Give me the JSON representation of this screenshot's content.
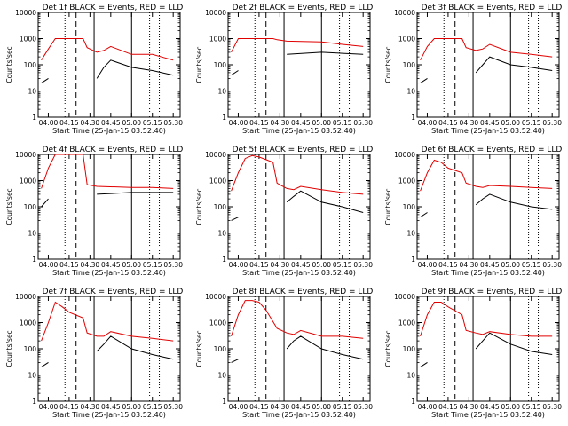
{
  "y_axis_label": "Counts/sec",
  "x_axis_label": "Start Time (25-Jan-15 03:52:40)",
  "y_ticks": [
    "1",
    "10",
    "100",
    "1000",
    "10000"
  ],
  "x_ticks": [
    "04:00",
    "04:15",
    "04:30",
    "04:45",
    "05:00",
    "05:15",
    "05:30"
  ],
  "colors": {
    "events": "#000000",
    "lld": "#e00000",
    "background": "#ffffff"
  },
  "chart_data": [
    {
      "type": "line",
      "title": "Det 1f BLACK = Events, RED = LLD",
      "ylim": [
        1,
        10000
      ],
      "yscale": "log",
      "series": [
        {
          "name": "Events",
          "x": [
            "03:55",
            "04:00",
            "04:12",
            "04:25",
            "04:30",
            "04:35",
            "04:40",
            "04:45",
            "05:00",
            "05:15",
            "05:30"
          ],
          "values": [
            20,
            30,
            null,
            null,
            null,
            30,
            80,
            150,
            80,
            60,
            40
          ]
        },
        {
          "name": "LLD",
          "x": [
            "03:55",
            "04:00",
            "04:05",
            "04:25",
            "04:28",
            "04:35",
            "04:40",
            "04:45",
            "05:00",
            "05:15",
            "05:30"
          ],
          "values": [
            150,
            400,
            1000,
            1000,
            450,
            300,
            350,
            500,
            250,
            250,
            150
          ]
        }
      ]
    },
    {
      "type": "line",
      "title": "Det 2f BLACK = Events, RED = LLD",
      "ylim": [
        1,
        10000
      ],
      "yscale": "log",
      "series": [
        {
          "name": "Events",
          "x": [
            "03:55",
            "04:00",
            "04:25",
            "04:30",
            "04:35",
            "05:00",
            "05:30"
          ],
          "values": [
            40,
            60,
            null,
            null,
            250,
            300,
            250
          ]
        },
        {
          "name": "LLD",
          "x": [
            "03:55",
            "04:00",
            "04:05",
            "04:25",
            "04:28",
            "04:35",
            "05:00",
            "05:15",
            "05:30"
          ],
          "values": [
            300,
            1000,
            1000,
            1000,
            900,
            800,
            750,
            600,
            500
          ]
        }
      ]
    },
    {
      "type": "line",
      "title": "Det 3f BLACK = Events, RED = LLD",
      "ylim": [
        1,
        10000
      ],
      "yscale": "log",
      "series": [
        {
          "name": "Events",
          "x": [
            "03:55",
            "04:00",
            "04:25",
            "04:30",
            "04:35",
            "04:40",
            "04:45",
            "05:00",
            "05:15",
            "05:30"
          ],
          "values": [
            20,
            30,
            null,
            null,
            50,
            100,
            200,
            100,
            80,
            60
          ]
        },
        {
          "name": "LLD",
          "x": [
            "03:55",
            "04:00",
            "04:05",
            "04:25",
            "04:28",
            "04:35",
            "04:40",
            "04:45",
            "05:00",
            "05:15",
            "05:30"
          ],
          "values": [
            150,
            500,
            1000,
            1000,
            450,
            350,
            400,
            600,
            300,
            250,
            200
          ]
        }
      ]
    },
    {
      "type": "line",
      "title": "Det 4f BLACK = Events, RED = LLD",
      "ylim": [
        1,
        10000
      ],
      "yscale": "log",
      "series": [
        {
          "name": "Events",
          "x": [
            "03:55",
            "04:00",
            "04:25",
            "04:30",
            "04:35",
            "05:00",
            "05:30"
          ],
          "values": [
            100,
            200,
            null,
            null,
            300,
            350,
            350
          ]
        },
        {
          "name": "LLD",
          "x": [
            "03:55",
            "04:00",
            "04:05",
            "04:10",
            "04:25",
            "04:28",
            "04:35",
            "05:00",
            "05:15",
            "05:30"
          ],
          "values": [
            500,
            3000,
            10000,
            10000,
            10000,
            700,
            600,
            550,
            550,
            500
          ]
        }
      ]
    },
    {
      "type": "line",
      "title": "Det 5f BLACK = Events, RED = LLD",
      "ylim": [
        1,
        10000
      ],
      "yscale": "log",
      "series": [
        {
          "name": "Events",
          "x": [
            "03:55",
            "04:00",
            "04:25",
            "04:30",
            "04:35",
            "04:40",
            "04:45",
            "05:00",
            "05:15",
            "05:30"
          ],
          "values": [
            30,
            40,
            null,
            null,
            150,
            250,
            400,
            150,
            100,
            60
          ]
        },
        {
          "name": "LLD",
          "x": [
            "03:55",
            "04:00",
            "04:05",
            "04:10",
            "04:15",
            "04:25",
            "04:28",
            "04:35",
            "04:40",
            "04:45",
            "05:00",
            "05:15",
            "05:30"
          ],
          "values": [
            400,
            2000,
            7000,
            9000,
            8000,
            5000,
            800,
            500,
            450,
            600,
            450,
            350,
            300
          ]
        }
      ]
    },
    {
      "type": "line",
      "title": "Det 6f BLACK = Events, RED = LLD",
      "ylim": [
        1,
        10000
      ],
      "yscale": "log",
      "series": [
        {
          "name": "Events",
          "x": [
            "03:55",
            "04:00",
            "04:25",
            "04:30",
            "04:35",
            "04:40",
            "04:45",
            "05:00",
            "05:15",
            "05:30"
          ],
          "values": [
            40,
            60,
            null,
            null,
            120,
            200,
            300,
            150,
            100,
            80
          ]
        },
        {
          "name": "LLD",
          "x": [
            "03:55",
            "04:00",
            "04:05",
            "04:10",
            "04:15",
            "04:25",
            "04:28",
            "04:35",
            "04:40",
            "04:45",
            "05:00",
            "05:15",
            "05:30"
          ],
          "values": [
            400,
            2000,
            6000,
            5000,
            3000,
            2000,
            800,
            600,
            550,
            650,
            600,
            550,
            500
          ]
        }
      ]
    },
    {
      "type": "line",
      "title": "Det 7f BLACK = Events, RED = LLD",
      "ylim": [
        1,
        10000
      ],
      "yscale": "log",
      "series": [
        {
          "name": "Events",
          "x": [
            "03:55",
            "04:00",
            "04:25",
            "04:30",
            "04:35",
            "04:40",
            "04:45",
            "05:00",
            "05:15",
            "05:30"
          ],
          "values": [
            20,
            30,
            null,
            null,
            80,
            150,
            300,
            100,
            60,
            40
          ]
        },
        {
          "name": "LLD",
          "x": [
            "03:55",
            "04:00",
            "04:05",
            "04:10",
            "04:15",
            "04:25",
            "04:28",
            "04:35",
            "04:40",
            "04:45",
            "05:00",
            "05:15",
            "05:30"
          ],
          "values": [
            200,
            1000,
            6000,
            4000,
            2500,
            1500,
            400,
            300,
            300,
            450,
            300,
            250,
            200
          ]
        }
      ]
    },
    {
      "type": "line",
      "title": "Det 8f BLACK = Events, RED = LLD",
      "ylim": [
        1,
        10000
      ],
      "yscale": "log",
      "series": [
        {
          "name": "Events",
          "x": [
            "03:55",
            "04:00",
            "04:25",
            "04:30",
            "04:35",
            "04:40",
            "04:45",
            "05:00",
            "05:15",
            "05:30"
          ],
          "values": [
            30,
            40,
            null,
            null,
            100,
            200,
            300,
            100,
            60,
            40
          ]
        },
        {
          "name": "LLD",
          "x": [
            "03:55",
            "04:00",
            "04:05",
            "04:10",
            "04:15",
            "04:20",
            "04:28",
            "04:35",
            "04:40",
            "04:45",
            "05:00",
            "05:15",
            "05:30"
          ],
          "values": [
            300,
            2000,
            7000,
            7000,
            6000,
            3000,
            600,
            400,
            350,
            500,
            300,
            300,
            250
          ]
        }
      ]
    },
    {
      "type": "line",
      "title": "Det 9f BLACK = Events, RED = LLD",
      "ylim": [
        1,
        10000
      ],
      "yscale": "log",
      "series": [
        {
          "name": "Events",
          "x": [
            "03:55",
            "04:00",
            "04:25",
            "04:30",
            "04:35",
            "04:40",
            "04:45",
            "05:00",
            "05:15",
            "05:30"
          ],
          "values": [
            20,
            30,
            null,
            null,
            100,
            200,
            400,
            150,
            80,
            60
          ]
        },
        {
          "name": "LLD",
          "x": [
            "03:55",
            "04:00",
            "04:05",
            "04:10",
            "04:15",
            "04:25",
            "04:28",
            "04:35",
            "04:40",
            "04:45",
            "05:00",
            "05:15",
            "05:30"
          ],
          "values": [
            300,
            2000,
            6000,
            6000,
            4000,
            2000,
            500,
            400,
            350,
            450,
            350,
            300,
            300
          ]
        }
      ]
    }
  ]
}
